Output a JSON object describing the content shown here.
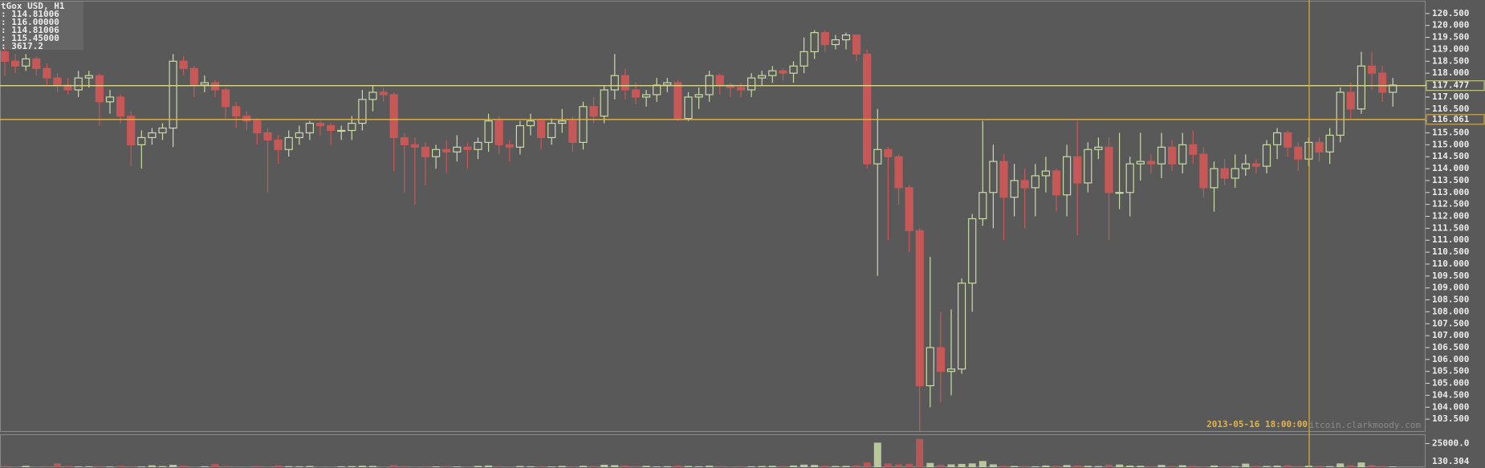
{
  "chart_data": {
    "type": "candlestick",
    "info": {
      "title": "tGox USD, H1",
      "lines": [
        ": 114.81006",
        ": 116.00000",
        ": 114.81006",
        ": 115.45000",
        ": 3617.2"
      ]
    },
    "series": {
      "open": [
        118.9,
        118.5,
        118.3,
        118.6,
        118.2,
        117.8,
        117.5,
        117.3,
        117.8,
        117.9,
        116.8,
        117.0,
        116.2,
        115.0,
        115.3,
        115.5,
        115.7,
        118.5,
        118.2,
        117.5,
        117.6,
        117.3,
        116.6,
        116.2,
        116.0,
        115.5,
        115.2,
        114.8,
        115.3,
        115.5,
        115.9,
        115.8,
        115.6,
        115.6,
        115.9,
        116.9,
        117.2,
        117.1,
        115.3,
        115.0,
        114.9,
        114.5,
        114.8,
        114.7,
        114.9,
        114.8,
        115.1,
        116.0,
        115.0,
        114.9,
        115.8,
        116.0,
        115.3,
        115.9,
        116.0,
        115.1,
        116.6,
        116.2,
        117.3,
        117.9,
        117.3,
        117.0,
        117.1,
        117.5,
        117.6,
        116.1,
        117.0,
        117.1,
        117.9,
        117.5,
        117.4,
        117.3,
        117.8,
        117.9,
        118.1,
        118.0,
        118.3,
        118.9,
        119.7,
        119.2,
        119.4,
        119.6,
        118.8,
        114.2,
        114.8,
        114.5,
        113.2,
        111.4,
        104.9,
        106.5,
        105.5,
        105.6,
        109.2,
        111.9,
        113.0,
        114.3,
        112.8,
        113.5,
        113.2,
        113.7,
        113.9,
        112.9,
        114.5,
        113.4,
        114.8,
        114.9,
        113.0,
        113.0,
        114.2,
        114.3,
        114.2,
        114.9,
        114.2,
        115.0,
        114.6,
        113.2,
        114.0,
        113.6,
        114.0,
        114.2,
        114.1,
        115.0,
        115.5,
        114.9,
        114.4,
        115.1,
        114.7,
        115.4,
        117.2,
        116.5,
        118.3,
        118.0,
        117.2
      ],
      "high": [
        119.1,
        118.8,
        118.8,
        118.7,
        118.4,
        118.0,
        117.8,
        118.1,
        118.1,
        118.0,
        117.3,
        117.1,
        116.4,
        115.6,
        115.7,
        115.9,
        118.8,
        118.7,
        118.3,
        117.9,
        117.7,
        117.4,
        116.8,
        116.4,
        116.1,
        115.7,
        115.4,
        115.6,
        115.8,
        116.0,
        116.0,
        115.9,
        115.8,
        116.2,
        117.3,
        117.5,
        117.4,
        117.2,
        115.5,
        115.3,
        115.1,
        115.0,
        115.2,
        115.4,
        115.1,
        115.3,
        116.3,
        116.2,
        115.2,
        116.0,
        116.3,
        116.1,
        116.1,
        116.5,
        116.2,
        116.8,
        117.0,
        117.5,
        118.8,
        118.2,
        117.6,
        117.3,
        117.8,
        117.8,
        117.7,
        117.2,
        117.4,
        118.1,
        118.0,
        117.6,
        117.6,
        118.0,
        118.1,
        118.3,
        118.2,
        118.5,
        119.5,
        119.8,
        119.8,
        119.6,
        119.7,
        119.6,
        119.0,
        116.5,
        114.9,
        114.6,
        113.3,
        111.5,
        110.3,
        108.0,
        108.1,
        109.4,
        112.1,
        116.0,
        115.0,
        114.6,
        114.2,
        114.0,
        114.2,
        114.5,
        114.0,
        115.0,
        116.0,
        115.1,
        115.3,
        115.3,
        115.5,
        114.5,
        115.5,
        114.6,
        115.5,
        115.2,
        115.5,
        115.6,
        114.9,
        114.3,
        114.4,
        114.6,
        114.6,
        114.4,
        115.2,
        115.7,
        115.6,
        115.1,
        115.3,
        115.3,
        115.7,
        117.4,
        117.6,
        118.9,
        118.9,
        118.3,
        117.8
      ],
      "low": [
        117.9,
        118.0,
        118.1,
        117.9,
        117.5,
        117.2,
        117.1,
        117.0,
        117.4,
        115.8,
        116.3,
        115.9,
        114.1,
        114.0,
        115.0,
        115.2,
        114.9,
        117.9,
        117.0,
        117.2,
        117.0,
        116.1,
        115.7,
        115.6,
        115.0,
        113.0,
        114.2,
        114.5,
        115.0,
        115.2,
        115.4,
        115.0,
        115.2,
        115.2,
        115.6,
        116.4,
        116.8,
        113.9,
        113.0,
        112.5,
        113.3,
        114.0,
        113.8,
        114.3,
        114.0,
        114.4,
        114.7,
        114.6,
        114.3,
        114.6,
        115.4,
        114.8,
        115.0,
        115.5,
        114.7,
        114.8,
        115.9,
        115.9,
        116.9,
        116.9,
        116.7,
        116.6,
        116.8,
        117.2,
        116.0,
        116.0,
        116.5,
        116.8,
        117.1,
        117.0,
        117.0,
        117.0,
        117.5,
        117.6,
        117.7,
        117.6,
        118.0,
        118.6,
        118.9,
        119.0,
        119.0,
        118.5,
        114.0,
        109.5,
        111.0,
        112.5,
        110.5,
        103.0,
        104.0,
        104.2,
        104.5,
        105.4,
        108.0,
        111.6,
        111.5,
        111.0,
        112.0,
        111.5,
        112.0,
        113.0,
        112.2,
        112.0,
        111.2,
        113.0,
        114.4,
        111.0,
        112.3,
        112.0,
        113.5,
        113.8,
        113.6,
        113.9,
        113.8,
        114.2,
        112.8,
        112.2,
        113.3,
        113.2,
        113.7,
        113.8,
        113.8,
        114.4,
        114.5,
        113.9,
        114.1,
        114.3,
        114.2,
        115.1,
        116.1,
        116.3,
        117.3,
        116.8,
        116.6
      ],
      "close": [
        118.5,
        118.3,
        118.6,
        118.2,
        117.8,
        117.5,
        117.3,
        117.8,
        117.9,
        116.8,
        117.0,
        116.2,
        115.0,
        115.3,
        115.5,
        115.7,
        118.5,
        118.2,
        117.5,
        117.6,
        117.3,
        116.6,
        116.2,
        116.0,
        115.5,
        115.2,
        114.8,
        115.3,
        115.5,
        115.9,
        115.8,
        115.6,
        115.6,
        115.9,
        116.9,
        117.2,
        117.1,
        115.3,
        115.0,
        114.9,
        114.5,
        114.8,
        114.7,
        114.9,
        114.8,
        115.1,
        116.0,
        115.0,
        114.9,
        115.8,
        116.0,
        115.3,
        115.9,
        116.0,
        115.1,
        116.6,
        116.2,
        117.3,
        117.9,
        117.3,
        117.0,
        117.1,
        117.5,
        117.6,
        116.1,
        117.0,
        117.1,
        117.9,
        117.5,
        117.4,
        117.3,
        117.8,
        117.9,
        118.1,
        118.0,
        118.3,
        118.9,
        119.7,
        119.2,
        119.4,
        119.6,
        118.8,
        114.2,
        114.8,
        114.5,
        113.2,
        111.4,
        104.9,
        106.5,
        105.5,
        105.6,
        109.2,
        111.9,
        113.0,
        114.3,
        112.8,
        113.5,
        113.2,
        113.7,
        113.9,
        112.9,
        114.5,
        113.4,
        114.8,
        114.9,
        113.0,
        113.0,
        114.2,
        114.3,
        114.2,
        114.9,
        114.2,
        115.0,
        114.6,
        113.2,
        114.0,
        113.6,
        114.0,
        114.2,
        114.1,
        115.0,
        115.5,
        114.9,
        114.4,
        115.1,
        114.7,
        115.4,
        117.2,
        116.5,
        118.3,
        118.0,
        117.2,
        117.5
      ]
    },
    "volume": [
      1200,
      900,
      1500,
      800,
      1100,
      4000,
      1300,
      900,
      1000,
      1200,
      800,
      1500,
      1100,
      900,
      2000,
      1200,
      2500,
      1700,
      900,
      1000,
      3500,
      1200,
      1000,
      800,
      1400,
      900,
      1800,
      1100,
      1000,
      1300,
      900,
      800,
      1000,
      1200,
      1600,
      1400,
      900,
      2200,
      1300,
      1000,
      1100,
      900,
      1200,
      800,
      1000,
      1400,
      1800,
      1100,
      900,
      1300,
      1000,
      1200,
      800,
      1400,
      1100,
      1500,
      1300,
      2600,
      2200,
      1800,
      1200,
      1500,
      900,
      1100,
      1700,
      1300,
      1000,
      1600,
      1200,
      900,
      1100,
      1000,
      1300,
      1500,
      1200,
      1800,
      2700,
      2400,
      1600,
      1300,
      1400,
      2000,
      5000,
      26000,
      4000,
      3000,
      3500,
      30000,
      4500,
      2500,
      3000,
      3500,
      4000,
      6500,
      3000,
      1500,
      1300,
      1200,
      1000,
      1800,
      1400,
      2300,
      1900,
      1500,
      1200,
      2600,
      2800,
      1700,
      1500,
      1200,
      2400,
      1300,
      2100,
      1500,
      1000,
      1800,
      1200,
      1100,
      3800,
      1400,
      1300,
      1700,
      2000,
      1200,
      1600,
      1400,
      1100,
      4000,
      2000,
      5000,
      2200,
      1200,
      800
    ],
    "up_color": "#c9dca6",
    "down_color": "#c65858",
    "ylim": [
      103,
      121
    ],
    "yticks": [
      {
        "value": 103.5,
        "label": "103.500"
      },
      {
        "value": 104,
        "label": "104.000"
      },
      {
        "value": 104.5,
        "label": "104.500"
      },
      {
        "value": 105,
        "label": "105.000"
      },
      {
        "value": 105.5,
        "label": "105.500"
      },
      {
        "value": 106,
        "label": "106.000"
      },
      {
        "value": 106.5,
        "label": "106.500"
      },
      {
        "value": 107,
        "label": "107.000"
      },
      {
        "value": 107.5,
        "label": "107.500"
      },
      {
        "value": 108,
        "label": "108.000"
      },
      {
        "value": 108.5,
        "label": "108.500"
      },
      {
        "value": 109,
        "label": "109.000"
      },
      {
        "value": 109.5,
        "label": "109.500"
      },
      {
        "value": 110,
        "label": "110.000"
      },
      {
        "value": 110.5,
        "label": "110.500"
      },
      {
        "value": 111,
        "label": "111.000"
      },
      {
        "value": 111.5,
        "label": "111.500"
      },
      {
        "value": 112,
        "label": "112.000"
      },
      {
        "value": 112.5,
        "label": "112.500"
      },
      {
        "value": 113,
        "label": "113.000"
      },
      {
        "value": 113.5,
        "label": "113.500"
      },
      {
        "value": 114,
        "label": "114.000"
      },
      {
        "value": 114.5,
        "label": "114.500"
      },
      {
        "value": 115,
        "label": "115.000"
      },
      {
        "value": 115.5,
        "label": "115.500"
      },
      {
        "value": 116,
        "label": "116.000"
      },
      {
        "value": 116.5,
        "label": "116.500"
      },
      {
        "value": 117,
        "label": "117.000"
      },
      {
        "value": 117.5,
        "label": "117.500"
      },
      {
        "value": 118,
        "label": "118.000"
      },
      {
        "value": 118.5,
        "label": "118.500"
      },
      {
        "value": 119,
        "label": "119.000"
      },
      {
        "value": 119.5,
        "label": "119.500"
      },
      {
        "value": 120,
        "label": "120.000"
      },
      {
        "value": 120.5,
        "label": "120.500"
      }
    ],
    "hlines": [
      {
        "value": 117.477,
        "color": "#d9d98c"
      },
      {
        "value": 116.061,
        "color": "#e3b548"
      }
    ],
    "crosshair_label": "2013-05-16 18:00:00",
    "watermark": "bitcoin.clarkmoody.com",
    "volume_ylim": [
      0,
      34000
    ],
    "volume_yticks": [
      {
        "value": 25000,
        "label": "25000.0"
      }
    ],
    "volume_note": "130.304"
  }
}
